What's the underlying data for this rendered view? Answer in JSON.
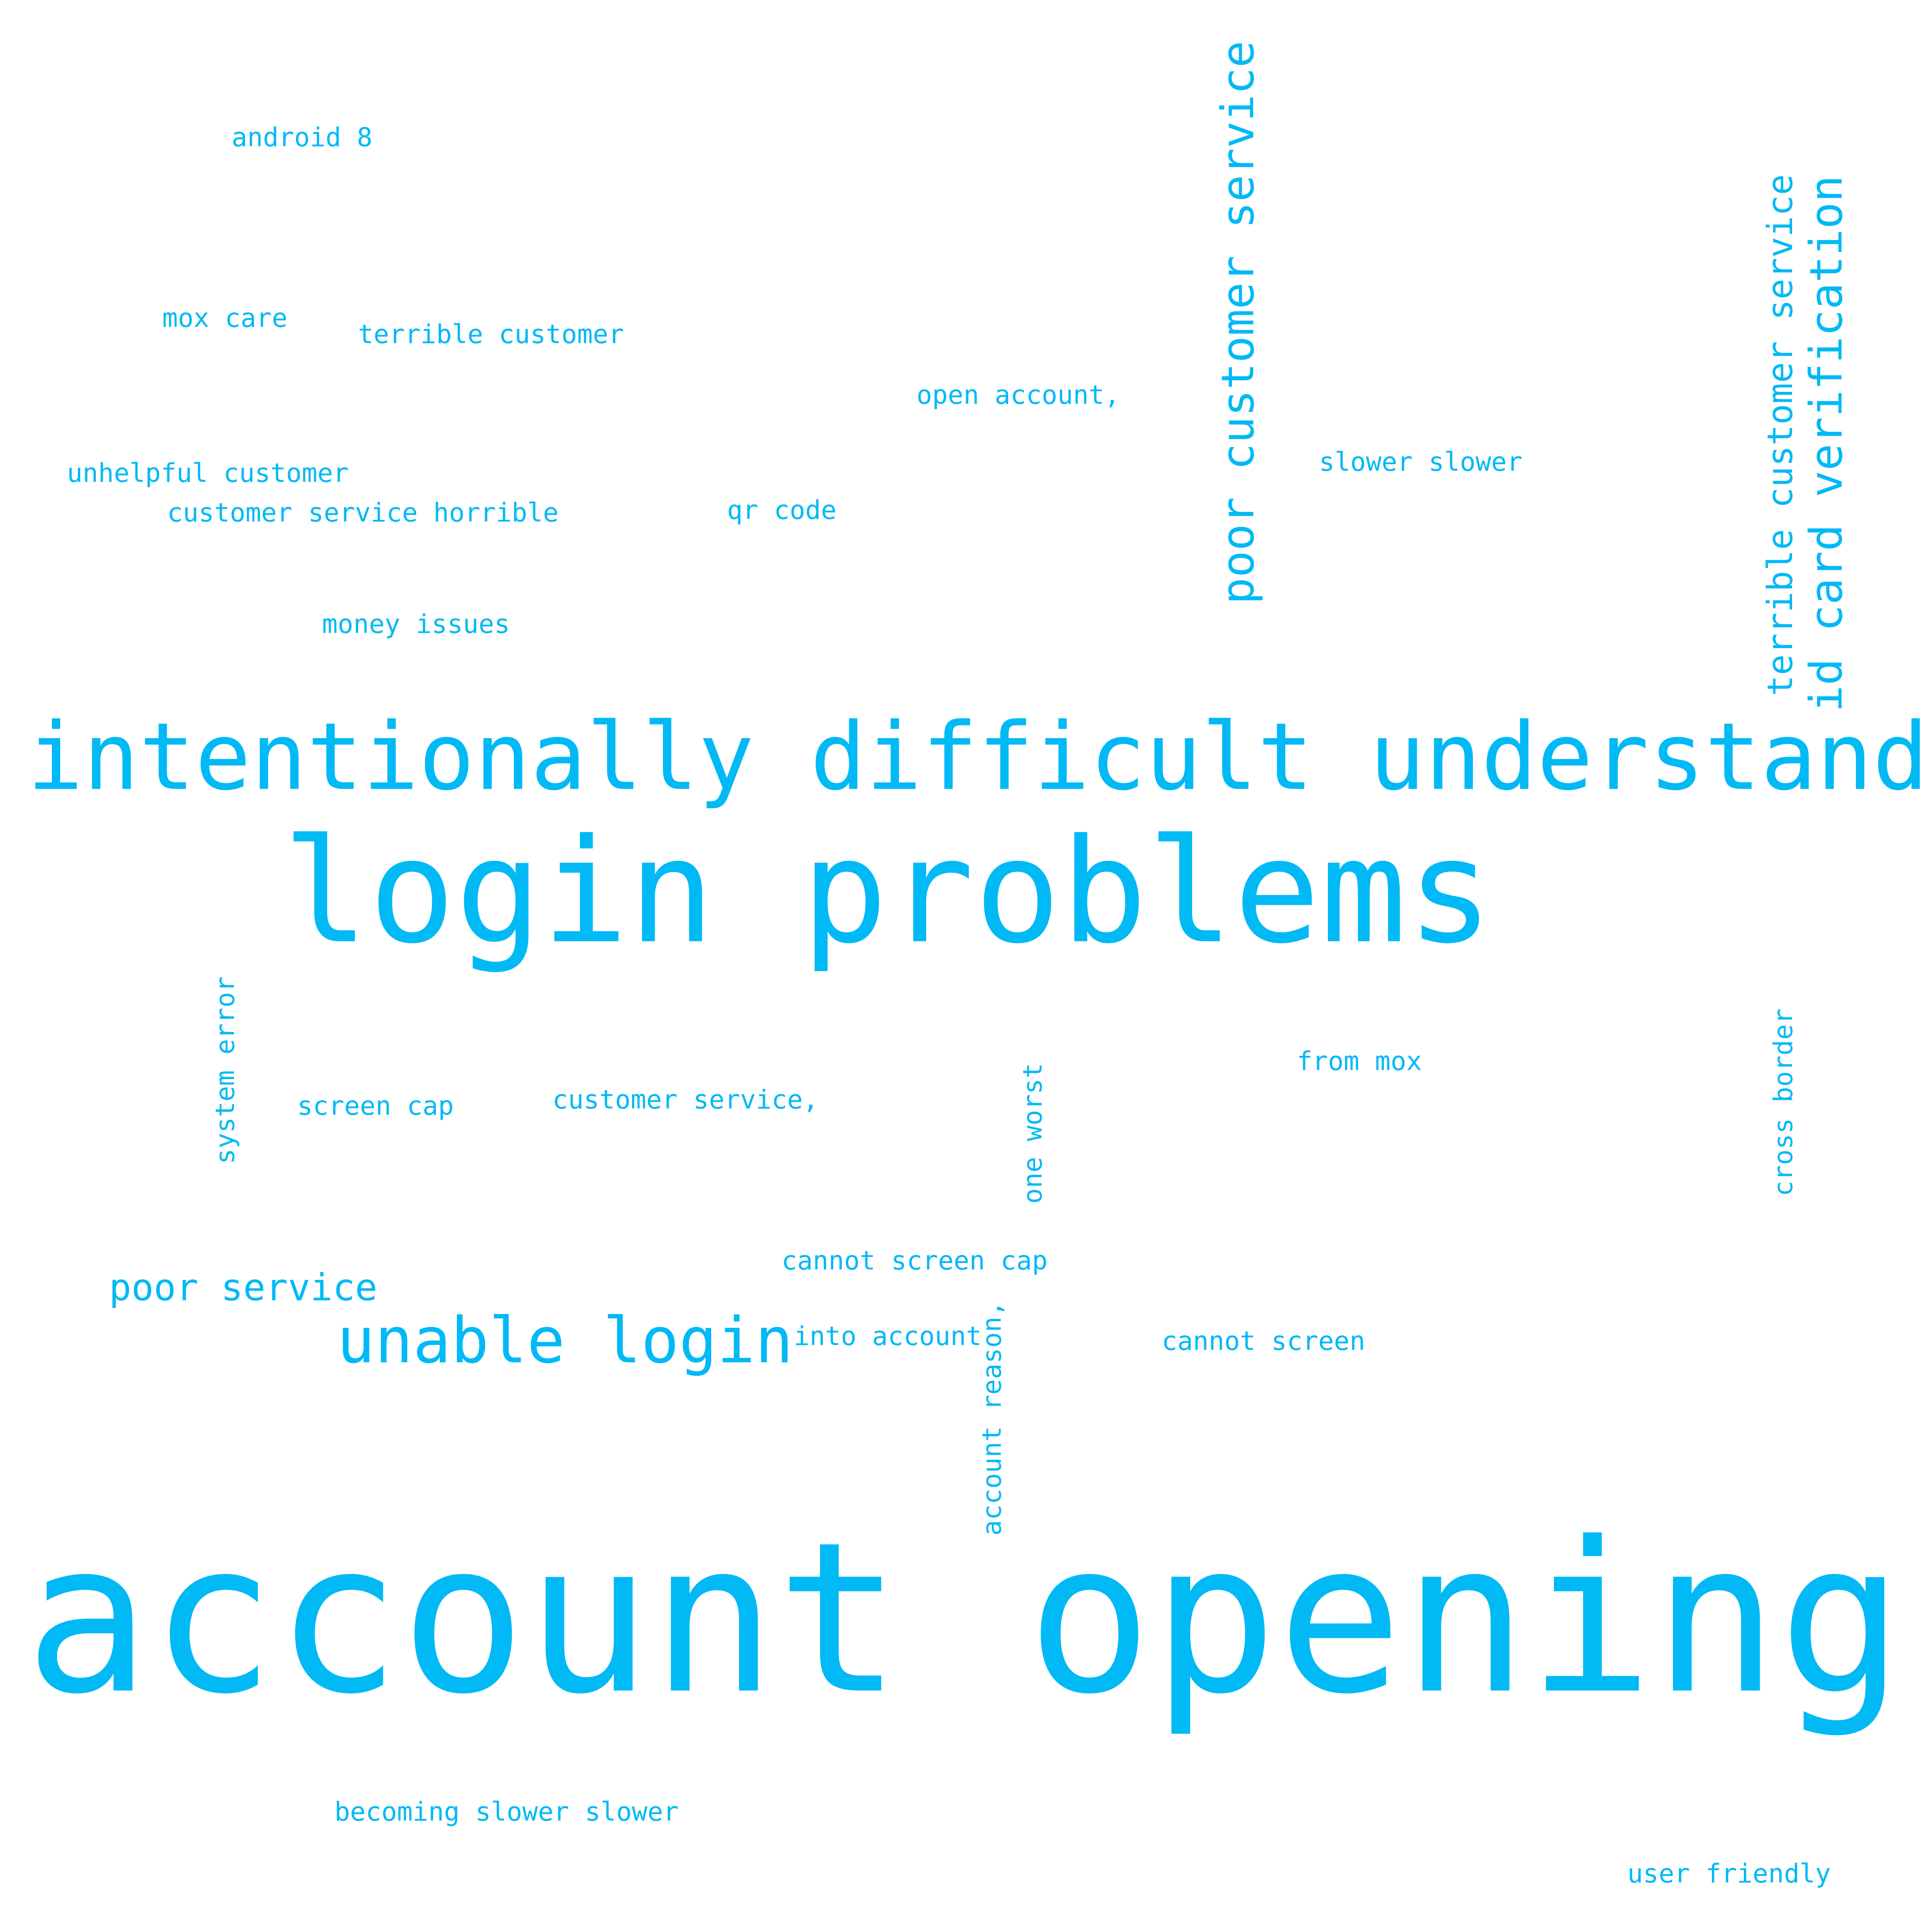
{
  "color": "#00b9f5",
  "words": [
    "android 8",
    "mox care",
    "terrible customer",
    "open account,",
    "unhelpful customer",
    "customer service horrible",
    "qr code",
    "slower slower",
    "money issues",
    "poor customer service",
    "terrible customer service",
    "id card verification",
    "intentionally difficult understand",
    "login problems",
    "account opening",
    "system error",
    "screen cap",
    "customer service,",
    "one worst",
    "from mox",
    "cross border",
    "cannot screen cap",
    "poor service",
    "unable login",
    "into account",
    "account reason,",
    "cannot screen",
    "becoming slower slower",
    "user friendly"
  ]
}
